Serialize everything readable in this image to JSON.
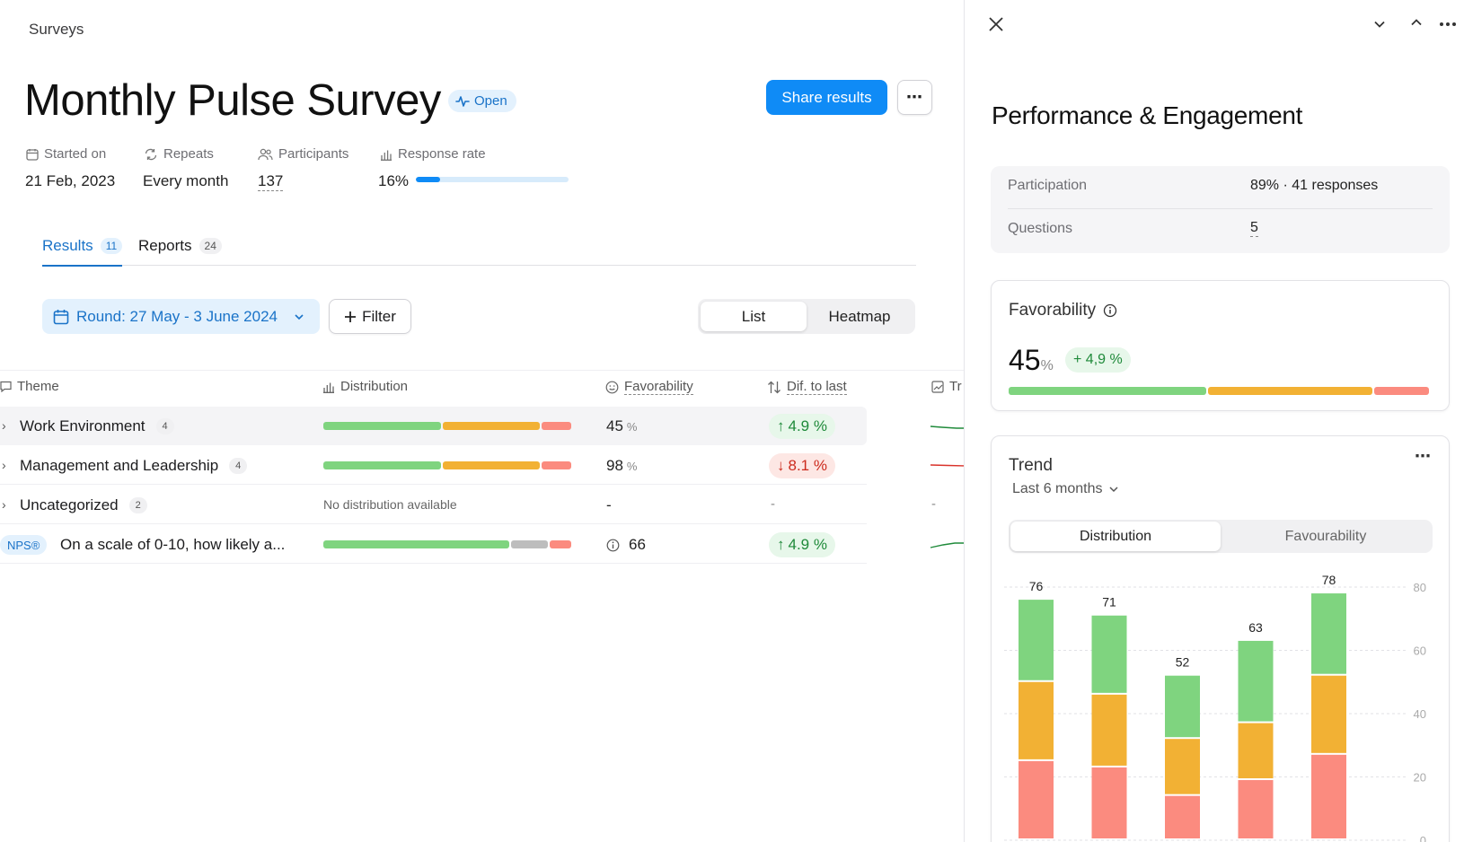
{
  "breadcrumb": "Surveys",
  "survey": {
    "title": "Monthly Pulse Survey",
    "status": "Open",
    "share_label": "Share results",
    "more_label": "⋯"
  },
  "meta": {
    "started_label": "Started on",
    "started_value": "21 Feb, 2023",
    "repeats_label": "Repeats",
    "repeats_value": "Every month",
    "participants_label": "Participants",
    "participants_value": "137",
    "response_label": "Response rate",
    "response_value": "16%",
    "response_fraction": 0.16
  },
  "tabs": [
    {
      "label": "Results",
      "count": "11",
      "active": true
    },
    {
      "label": "Reports",
      "count": "24",
      "active": false
    }
  ],
  "toolbar": {
    "round_label": "Round: 27 May - 3 June 2024",
    "filter_label": "Filter",
    "view_list": "List",
    "view_heatmap": "Heatmap"
  },
  "table": {
    "col_theme": "Theme",
    "col_distribution": "Distribution",
    "col_favorability": "Favorability",
    "col_diff": "Dif. to last",
    "col_trend": "Tr",
    "rows": [
      {
        "name": "Work Environment",
        "count": "4",
        "dist": [
          0.48,
          0.4,
          0.12
        ],
        "fav": "45",
        "fav_unit": "%",
        "diff": "4.9 %",
        "diff_dir": "up"
      },
      {
        "name": "Management and Leadership",
        "count": "4",
        "dist": [
          0.48,
          0.4,
          0.12
        ],
        "fav": "98",
        "fav_unit": "%",
        "diff": "8.1 %",
        "diff_dir": "down"
      },
      {
        "name": "Uncategorized",
        "count": "2",
        "no_dist": "No distribution available",
        "fav": "-",
        "diff": "-",
        "trend": "-"
      },
      {
        "nps_badge": "NPS®",
        "name": "On a scale of 0-10, how likely a...",
        "dist": [
          0.76,
          0.15,
          0.09
        ],
        "fav": "66",
        "diff": "4.9 %",
        "diff_dir": "up"
      }
    ]
  },
  "panel": {
    "title": "Performance & Engagement",
    "participation_label": "Participation",
    "participation_value": "89% · 41 responses",
    "questions_label": "Questions",
    "questions_value": "5",
    "favorability_title": "Favorability",
    "favorability_value": "45",
    "favorability_unit": "%",
    "favorability_delta": "+ 4,9 %",
    "favorability_dist": [
      0.47,
      0.39,
      0.13
    ],
    "trend_title": "Trend",
    "trend_period": "Last 6 months",
    "trend_tab_distribution": "Distribution",
    "trend_tab_favourability": "Favourability"
  },
  "colors": {
    "favorable": "#7fd47f",
    "neutral": "#f2b134",
    "unfavorable": "#fb8b7f",
    "nps_neutral": "#bdbdbd",
    "accent": "#0f8bf6"
  },
  "chart_data": {
    "type": "bar",
    "stacked": true,
    "categories": [
      "",
      "",
      "",
      "",
      ""
    ],
    "totals": [
      76,
      71,
      52,
      63,
      78
    ],
    "series": [
      {
        "values": [
          25,
          23,
          14,
          19,
          27
        ],
        "color": "#fb8b7f"
      },
      {
        "values": [
          25,
          23,
          18,
          18,
          25
        ],
        "color": "#f2b134"
      },
      {
        "values": [
          26,
          25,
          20,
          26,
          26
        ],
        "color": "#7fd47f"
      }
    ],
    "y_ticks": [
      "0",
      "20",
      "40",
      "60",
      "80"
    ],
    "ylim": [
      0,
      80
    ],
    "grid": true,
    "axis_position": "right"
  }
}
